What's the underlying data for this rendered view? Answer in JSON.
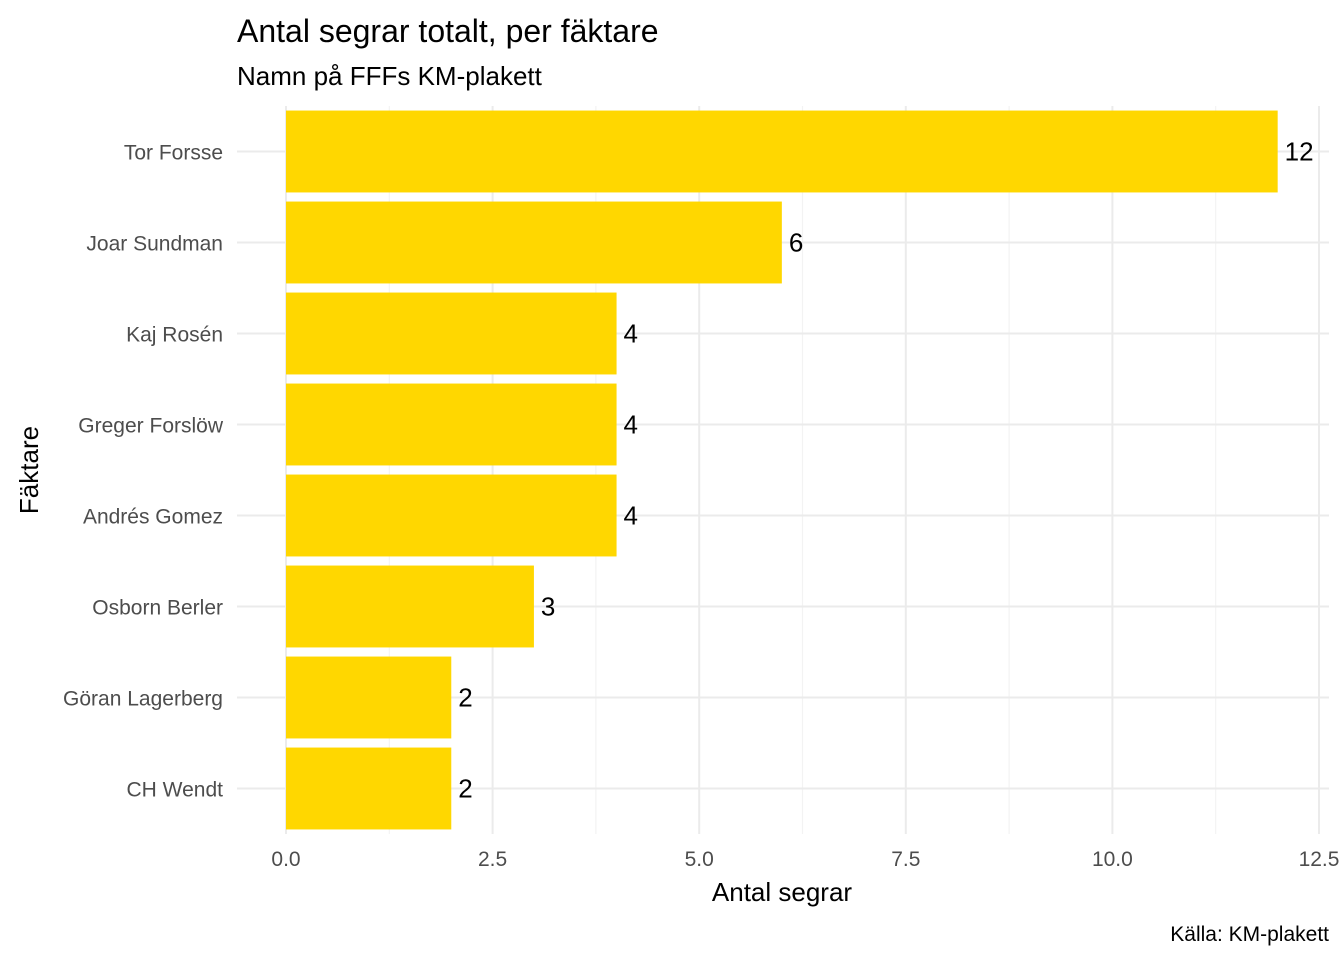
{
  "chart_data": {
    "type": "bar",
    "orientation": "horizontal",
    "title": "Antal segrar totalt, per fäktare",
    "subtitle": "Namn på FFFs KM-plakett",
    "xlabel": "Antal segrar",
    "ylabel": "Fäktare",
    "caption": "Källa: KM-plakett",
    "categories": [
      "Tor Forsse",
      "Joar Sundman",
      "Kaj Rosén",
      "Greger Forslöw",
      "Andrés Gomez",
      "Osborn Berler",
      "Göran Lagerberg",
      "CH Wendt"
    ],
    "values": [
      12,
      6,
      4,
      4,
      4,
      3,
      2,
      2
    ],
    "data_labels": [
      "12",
      "6",
      "4",
      "4",
      "4",
      "3",
      "2",
      "2"
    ],
    "xlim": [
      0,
      12.5
    ],
    "xticks": [
      0,
      2.5,
      5,
      7.5,
      10,
      12.5
    ],
    "xtick_labels": [
      "0.0",
      "2.5",
      "5.0",
      "7.5",
      "10.0",
      "12.5"
    ],
    "bar_color": "#FFD700",
    "grid": true,
    "legend": "none"
  }
}
